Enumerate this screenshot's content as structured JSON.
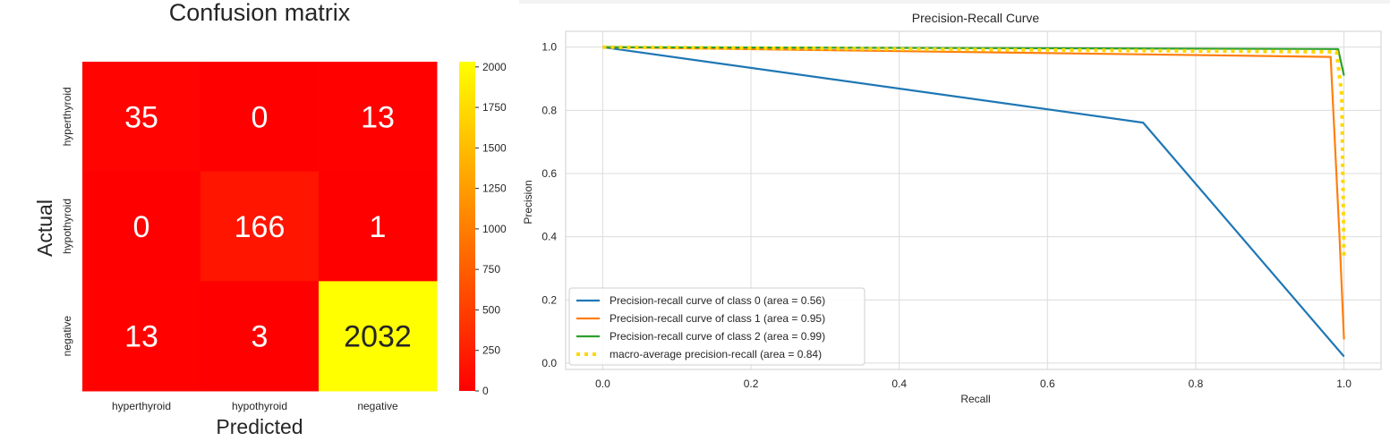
{
  "chart_data": [
    {
      "type": "heatmap",
      "title": "Confusion matrix",
      "xlabel": "Predicted",
      "ylabel": "Actual",
      "x_categories": [
        "hyperthyroid",
        "hypothyroid",
        "negative"
      ],
      "y_categories": [
        "hyperthyroid",
        "hypothyroid",
        "negative"
      ],
      "values": [
        [
          35,
          0,
          13
        ],
        [
          0,
          166,
          1
        ],
        [
          13,
          3,
          2032
        ]
      ],
      "colormap": "autumn",
      "color_min": "#ff0000",
      "color_max": "#ffff00",
      "colorbar_range": [
        0,
        2032
      ],
      "colorbar_ticks": [
        0,
        250,
        500,
        750,
        1000,
        1250,
        1500,
        1750,
        2000
      ]
    },
    {
      "type": "line",
      "title": "Precision-Recall Curve",
      "xlabel": "Recall",
      "ylabel": "Precision",
      "xlim": [
        -0.05,
        1.05
      ],
      "ylim": [
        -0.02,
        1.05
      ],
      "xticks": [
        "0.0",
        "0.2",
        "0.4",
        "0.6",
        "0.8",
        "1.0"
      ],
      "yticks": [
        "0.0",
        "0.2",
        "0.4",
        "0.6",
        "0.8",
        "1.0"
      ],
      "grid": true,
      "legend_position": "lower-left",
      "series": [
        {
          "name": "Precision-recall curve of class 0 (area = 0.56)",
          "color": "#1f77b4",
          "style": "solid",
          "x": [
            0.0,
            0.729,
            1.0
          ],
          "y": [
            1.0,
            0.761,
            0.021
          ]
        },
        {
          "name": "Precision-recall curve of class 1 (area = 0.95)",
          "color": "#ff7f0e",
          "style": "solid",
          "x": [
            0.0,
            0.982,
            0.994,
            1.0
          ],
          "y": [
            1.0,
            0.969,
            0.4,
            0.075
          ]
        },
        {
          "name": "Precision-recall curve of class 2 (area = 0.99)",
          "color": "#2ca02c",
          "style": "solid",
          "x": [
            0.0,
            0.992,
            1.0
          ],
          "y": [
            1.0,
            0.994,
            0.91
          ]
        },
        {
          "name": "macro-average precision-recall (area = 0.84)",
          "color": "#ffd700",
          "style": "dotted",
          "x": [
            0.0,
            0.99,
            0.997,
            1.0
          ],
          "y": [
            1.0,
            0.985,
            0.85,
            0.34
          ]
        }
      ]
    }
  ]
}
